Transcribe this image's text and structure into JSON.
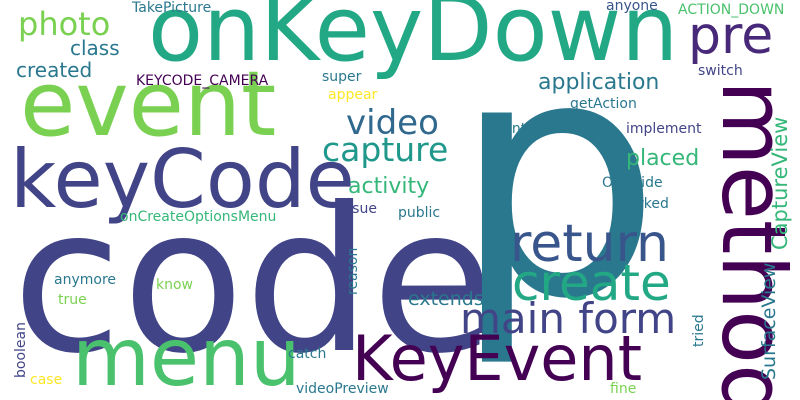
{
  "words": [
    {
      "text": "code",
      "color": "#414487",
      "vertical": false,
      "size": "large"
    },
    {
      "text": "p",
      "color": "#2a788e",
      "vertical": false,
      "size": "large"
    },
    {
      "text": "onKeyDown",
      "color": "#22a884",
      "vertical": false,
      "size": "large"
    },
    {
      "text": "event",
      "color": "#7ad151",
      "vertical": false,
      "size": "large"
    },
    {
      "text": "keyCode",
      "color": "#414487",
      "vertical": false,
      "size": "large"
    },
    {
      "text": "method",
      "color": "#440154",
      "vertical": true,
      "size": "large"
    },
    {
      "text": "menu",
      "color": "#4ac16d",
      "vertical": false,
      "size": "large"
    },
    {
      "text": "KeyEvent",
      "color": "#440154",
      "vertical": false,
      "size": "large"
    },
    {
      "text": "return",
      "color": "#39568c",
      "vertical": false,
      "size": "medium"
    },
    {
      "text": "create",
      "color": "#22a884",
      "vertical": false,
      "size": "medium"
    },
    {
      "text": "main form",
      "color": "#414487",
      "vertical": false,
      "size": "medium"
    },
    {
      "text": "pre",
      "color": "#482878",
      "vertical": false,
      "size": "medium"
    },
    {
      "text": "photo",
      "color": "#7ad151",
      "vertical": false,
      "size": "medium"
    },
    {
      "text": "video",
      "color": "#31688e",
      "vertical": false,
      "size": "medium"
    },
    {
      "text": "capture",
      "color": "#1f988b",
      "vertical": false,
      "size": "medium"
    },
    {
      "text": "application",
      "color": "#2a788e",
      "vertical": false,
      "size": "small"
    },
    {
      "text": "SurfaceView",
      "color": "#2a788e",
      "vertical": true,
      "size": "small"
    },
    {
      "text": "CaptureView",
      "color": "#35b779",
      "vertical": true,
      "size": "small"
    },
    {
      "text": "activity",
      "color": "#35b779",
      "vertical": false,
      "size": "small"
    },
    {
      "text": "placed",
      "color": "#35b779",
      "vertical": false,
      "size": "small"
    },
    {
      "text": "extends",
      "color": "#2a788e",
      "vertical": false,
      "size": "small"
    },
    {
      "text": "class",
      "color": "#2a788e",
      "vertical": false,
      "size": "small"
    },
    {
      "text": "created",
      "color": "#2a788e",
      "vertical": false,
      "size": "small"
    },
    {
      "text": "TakePicture",
      "color": "#2a788e",
      "vertical": false,
      "size": "tiny"
    },
    {
      "text": "anyone",
      "color": "#39568c",
      "vertical": false,
      "size": "tiny"
    },
    {
      "text": "ACTION_DOWN",
      "color": "#4ac16d",
      "vertical": false,
      "size": "tiny"
    },
    {
      "text": "KEYCODE_CAMERA",
      "color": "#440154",
      "vertical": false,
      "size": "tiny"
    },
    {
      "text": "super",
      "color": "#2a788e",
      "vertical": false,
      "size": "tiny"
    },
    {
      "text": "appear",
      "color": "#fde725",
      "vertical": false,
      "size": "tiny"
    },
    {
      "text": "switch",
      "color": "#414487",
      "vertical": false,
      "size": "tiny"
    },
    {
      "text": "getAction",
      "color": "#2a788e",
      "vertical": false,
      "size": "tiny"
    },
    {
      "text": "int",
      "color": "#2a788e",
      "vertical": false,
      "size": "tiny"
    },
    {
      "text": "implement",
      "color": "#414487",
      "vertical": false,
      "size": "tiny"
    },
    {
      "text": "Override",
      "color": "#2a788e",
      "vertical": false,
      "size": "tiny"
    },
    {
      "text": "worked",
      "color": "#2a788e",
      "vertical": false,
      "size": "tiny"
    },
    {
      "text": "onCreateOptionsMenu",
      "color": "#35b779",
      "vertical": false,
      "size": "tiny"
    },
    {
      "text": "issue",
      "color": "#414487",
      "vertical": false,
      "size": "tiny"
    },
    {
      "text": "public",
      "color": "#2a788e",
      "vertical": false,
      "size": "tiny"
    },
    {
      "text": "anymore",
      "color": "#2a788e",
      "vertical": false,
      "size": "tiny"
    },
    {
      "text": "know",
      "color": "#7ad151",
      "vertical": false,
      "size": "tiny"
    },
    {
      "text": "true",
      "color": "#7ad151",
      "vertical": false,
      "size": "tiny"
    },
    {
      "text": "reason",
      "color": "#2a788e",
      "vertical": true,
      "size": "tiny"
    },
    {
      "text": "tried",
      "color": "#2a788e",
      "vertical": true,
      "size": "tiny"
    },
    {
      "text": "boolean",
      "color": "#414487",
      "vertical": true,
      "size": "tiny"
    },
    {
      "text": "catch",
      "color": "#2a788e",
      "vertical": false,
      "size": "tiny"
    },
    {
      "text": "case",
      "color": "#fde725",
      "vertical": false,
      "size": "tiny"
    },
    {
      "text": "videoPreview",
      "color": "#2a788e",
      "vertical": false,
      "size": "tiny"
    },
    {
      "text": "fine",
      "color": "#7ad151",
      "vertical": false,
      "size": "tiny"
    }
  ]
}
